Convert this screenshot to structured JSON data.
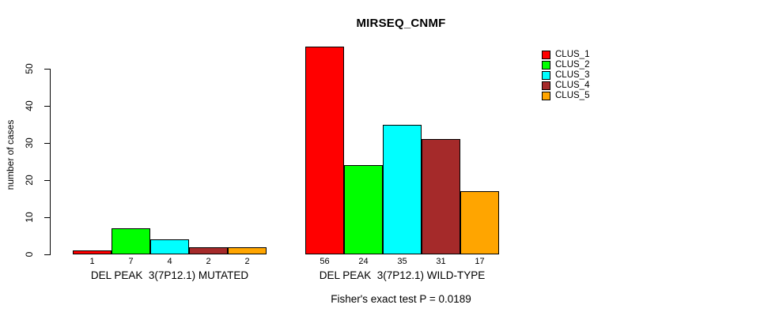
{
  "chart_data": {
    "type": "bar",
    "title": "MIRSEQ_CNMF",
    "ylabel": "number of cases",
    "xlabel": "",
    "ylim": [
      0,
      56
    ],
    "yticks": [
      0,
      10,
      20,
      30,
      40,
      50
    ],
    "grid": false,
    "legend_position": "top-right",
    "bar_value_labels": true,
    "categories": [
      "DEL PEAK  3(7P12.1) MUTATED",
      "DEL PEAK  3(7P12.1) WILD-TYPE"
    ],
    "series": [
      {
        "name": "CLUS_1",
        "color": "#ff0000",
        "values": [
          1,
          56
        ]
      },
      {
        "name": "CLUS_2",
        "color": "#00ff00",
        "values": [
          7,
          24
        ]
      },
      {
        "name": "CLUS_3",
        "color": "#00ffff",
        "values": [
          4,
          35
        ]
      },
      {
        "name": "CLUS_4",
        "color": "#a52a2a",
        "values": [
          2,
          31
        ]
      },
      {
        "name": "CLUS_5",
        "color": "#ffa500",
        "values": [
          2,
          17
        ]
      }
    ],
    "annotation": "Fisher's exact test P = 0.0189"
  }
}
